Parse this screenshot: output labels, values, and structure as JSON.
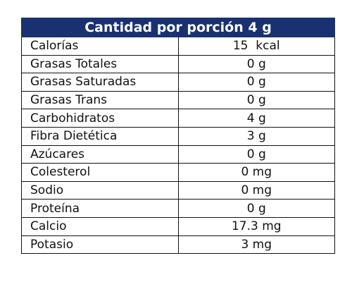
{
  "table": {
    "header": "Cantidad por porción 4 g",
    "rows": [
      {
        "name": "Calorías",
        "value": "15  kcal"
      },
      {
        "name": "Grasas Totales",
        "value": "0 g"
      },
      {
        "name": "Grasas Saturadas",
        "value": "0 g"
      },
      {
        "name": "Grasas Trans",
        "value": "0 g"
      },
      {
        "name": "Carbohidratos",
        "value": "4 g"
      },
      {
        "name": "Fibra Dietética",
        "value": "3 g"
      },
      {
        "name": "Azúcares",
        "value": "0 g"
      },
      {
        "name": "Colesterol",
        "value": "0 mg"
      },
      {
        "name": "Sodio",
        "value": "0 mg"
      },
      {
        "name": "Proteína",
        "value": "0 g"
      },
      {
        "name": "Calcio",
        "value": "17.3 mg"
      },
      {
        "name": "Potasio",
        "value": "3 mg"
      }
    ]
  },
  "colors": {
    "header_background": "#1a3171",
    "header_text": "#ffffff",
    "border": "#111111"
  }
}
